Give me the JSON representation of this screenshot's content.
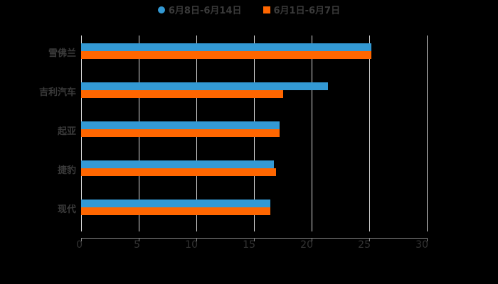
{
  "chart_data": {
    "type": "bar",
    "orientation": "horizontal",
    "title": "",
    "xlabel": "",
    "ylabel": "",
    "xlim": [
      0,
      30
    ],
    "xticks": [
      "0",
      "5",
      "10",
      "15",
      "20",
      "25",
      "30"
    ],
    "grid": true,
    "legend_position": "top",
    "categories": [
      "雪佛兰",
      "吉利汽车",
      "起亚",
      "捷豹",
      "现代"
    ],
    "series": [
      {
        "name": "6月8日-6月14日",
        "color": "#3399d4",
        "marker": "circle",
        "values": [
          25.2,
          21.4,
          17.2,
          16.7,
          16.4
        ]
      },
      {
        "name": "6月1日-6月7日",
        "color": "#ff6600",
        "marker": "square",
        "values": [
          25.2,
          17.5,
          17.2,
          16.9,
          16.4
        ]
      }
    ]
  }
}
